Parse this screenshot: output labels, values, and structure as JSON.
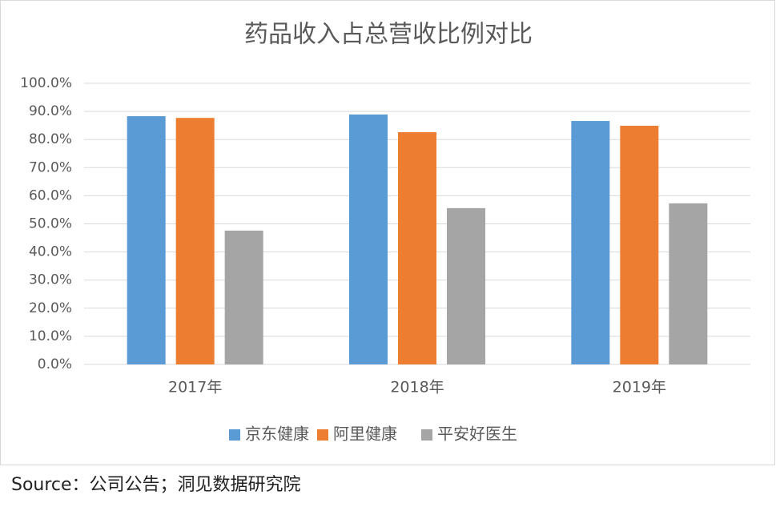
{
  "chart_data": {
    "type": "bar",
    "title": "药品收入占总营收比例对比",
    "categories": [
      "2017年",
      "2018年",
      "2019年"
    ],
    "series": [
      {
        "name": "京东健康",
        "color": "#5b9bd5",
        "values": [
          88.3,
          88.9,
          86.6
        ]
      },
      {
        "name": "阿里健康",
        "color": "#ed7d31",
        "values": [
          87.7,
          82.6,
          84.9
        ]
      },
      {
        "name": "平安好医生",
        "color": "#a5a5a5",
        "values": [
          47.6,
          55.6,
          57.3
        ]
      }
    ],
    "ylim": [
      0,
      100
    ],
    "yticks": [
      {
        "value": 0,
        "label": "0.0%"
      },
      {
        "value": 10,
        "label": "10.0%"
      },
      {
        "value": 20,
        "label": "20.0%"
      },
      {
        "value": 30,
        "label": "30.0%"
      },
      {
        "value": 40,
        "label": "40.0%"
      },
      {
        "value": 50,
        "label": "50.0%"
      },
      {
        "value": 60,
        "label": "60.0%"
      },
      {
        "value": 70,
        "label": "70.0%"
      },
      {
        "value": 80,
        "label": "80.0%"
      },
      {
        "value": 90,
        "label": "90.0%"
      },
      {
        "value": 100,
        "label": "100.0%"
      }
    ],
    "grid": true,
    "legend": "bottom"
  },
  "source": "Source：公司公告；洞见数据研究院"
}
